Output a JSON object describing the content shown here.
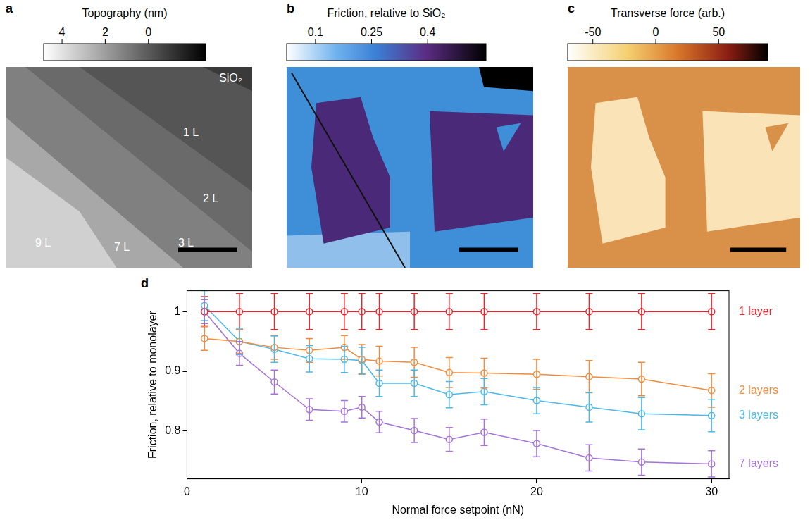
{
  "images": [
    {
      "letter": "a",
      "colorbar": {
        "title": "Topography (nm)",
        "range": [
          4.85,
          -2.65
        ],
        "ticks": [
          4,
          2,
          0
        ]
      },
      "labels": [
        "SiO₂",
        "1 L",
        "2 L",
        "3 L",
        "9 L",
        "7 L"
      ]
    },
    {
      "letter": "b",
      "colorbar": {
        "title": "Friction, relative to SiO₂",
        "range": [
          0.023,
          0.556
        ],
        "ticks": [
          0.1,
          0.25,
          0.4
        ]
      }
    },
    {
      "letter": "c",
      "colorbar": {
        "title": "Transverse force (arb.)",
        "range": [
          -70,
          89
        ],
        "ticks": [
          -50,
          0,
          50
        ]
      }
    }
  ],
  "chart_data": {
    "letter": "d",
    "type": "line",
    "x_label": "Normal force setpoint (nN)",
    "y_label": "Friction, relative to monolayer",
    "x": [
      1,
      3,
      5,
      7,
      9,
      10,
      11,
      13,
      15,
      17,
      20,
      23,
      26,
      30
    ],
    "xlim": [
      0,
      31
    ],
    "xticks": [
      0,
      10,
      20,
      30
    ],
    "ylim": [
      0.72,
      1.035
    ],
    "yticks": [
      0.8,
      0.9,
      1
    ],
    "grid": false,
    "marker": "circle",
    "series": [
      {
        "name": "1 layer",
        "color": "#e8262b",
        "values": [
          1,
          1,
          1,
          1,
          1,
          1,
          1,
          1,
          1,
          1,
          1,
          1,
          1,
          1
        ],
        "errors": [
          0.025,
          0.03,
          0.03,
          0.03,
          0.03,
          0.03,
          0.03,
          0.03,
          0.03,
          0.03,
          0.03,
          0.03,
          0.03,
          0.03
        ]
      },
      {
        "name": "2 layers",
        "color": "#f28b3c",
        "values": [
          0.955,
          0.95,
          0.94,
          0.935,
          0.94,
          0.92,
          0.917,
          0.915,
          0.898,
          0.897,
          0.895,
          0.891,
          0.887,
          0.868
        ],
        "errors": [
          0.02,
          0.02,
          0.02,
          0.02,
          0.02,
          0.025,
          0.025,
          0.025,
          0.025,
          0.025,
          0.025,
          0.027,
          0.028,
          0.028
        ]
      },
      {
        "name": "3 layers",
        "color": "#4bb8e8",
        "values": [
          1.01,
          0.95,
          0.937,
          0.921,
          0.92,
          0.918,
          0.88,
          0.88,
          0.861,
          0.866,
          0.851,
          0.84,
          0.829,
          0.826
        ],
        "errors": [
          0.025,
          0.022,
          0.022,
          0.022,
          0.022,
          0.022,
          0.022,
          0.022,
          0.022,
          0.022,
          0.022,
          0.025,
          0.027,
          0.027
        ]
      },
      {
        "name": "7 layers",
        "color": "#a473d8",
        "values": [
          1.0,
          0.93,
          0.882,
          0.836,
          0.833,
          0.84,
          0.815,
          0.801,
          0.786,
          0.798,
          0.779,
          0.755,
          0.748,
          0.745
        ],
        "errors": [
          0.02,
          0.02,
          0.02,
          0.018,
          0.018,
          0.018,
          0.018,
          0.02,
          0.02,
          0.022,
          0.022,
          0.022,
          0.022,
          0.022
        ]
      }
    ]
  }
}
